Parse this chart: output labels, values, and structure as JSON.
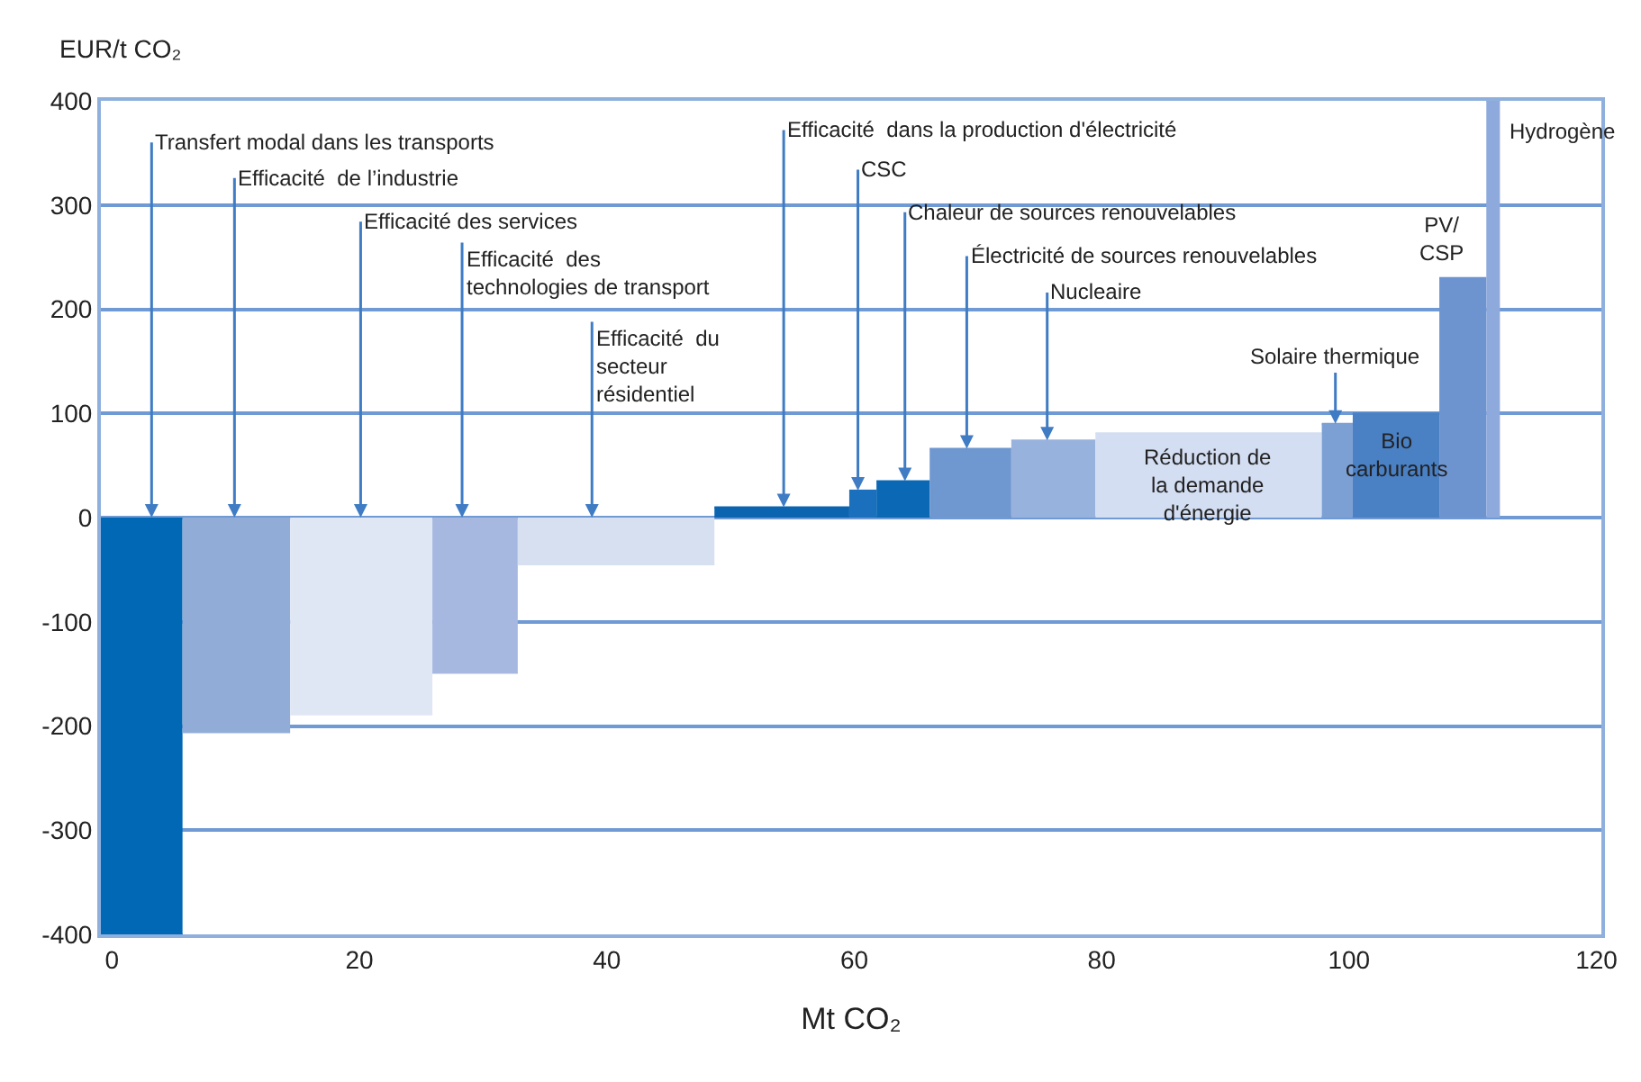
{
  "chart_data": {
    "type": "area",
    "xlabel": "Mt CO₂",
    "ylabel": "EUR/t CO₂",
    "xlim": [
      -0.9,
      120.4
    ],
    "xticks": [
      0,
      20,
      40,
      60,
      80,
      100,
      120
    ],
    "ylim": [
      -400,
      400
    ],
    "yticks": [
      -400,
      -300,
      -200,
      -100,
      0,
      100,
      200,
      300,
      400
    ],
    "grid": "y",
    "series": [
      {
        "color": "#0068b4",
        "x": [
          -0.9,
          5.7
        ],
        "values": [
          -400,
          -400
        ]
      },
      {
        "color": "#92acd8",
        "x": [
          5.7,
          14.4
        ],
        "values": [
          -206,
          -206
        ]
      },
      {
        "color": "#e0e7f4",
        "x": [
          14.4,
          25.9
        ],
        "values": [
          -189,
          -189
        ]
      },
      {
        "color": "#a6b8e0",
        "x": [
          25.9,
          32.8
        ],
        "values": [
          -149,
          -149
        ]
      },
      {
        "color": "#d6e0f1",
        "x": [
          32.8,
          48.7
        ],
        "values": [
          -45,
          -45
        ]
      },
      {
        "color": "#0a64b0",
        "x": [
          48.7,
          59.6
        ],
        "values": [
          10,
          10
        ]
      },
      {
        "color": "#1a70bc",
        "x": [
          59.6,
          61.8
        ],
        "values": [
          26,
          26
        ]
      },
      {
        "color": "#0a68b4",
        "x": [
          61.8,
          66.1
        ],
        "values": [
          35,
          35
        ]
      },
      {
        "color": "#6f97d0",
        "x": [
          66.1,
          72.7
        ],
        "values": [
          66,
          66
        ]
      },
      {
        "color": "#98b2de",
        "x": [
          72.7,
          79.5
        ],
        "values": [
          74,
          74
        ]
      },
      {
        "color": "#d4def2",
        "x": [
          79.5,
          97.8
        ],
        "values": [
          81,
          81
        ]
      },
      {
        "color": "#7c9fd4",
        "x": [
          97.8,
          100.3
        ],
        "values": [
          90,
          90
        ]
      },
      {
        "color": "#4a80c4",
        "x": [
          100.3,
          107.3
        ],
        "values": [
          100,
          100
        ]
      },
      {
        "color": "#6e94d0",
        "x": [
          107.3,
          111.1
        ],
        "values": [
          230,
          230
        ]
      },
      {
        "color": "#8eaadc",
        "x": [
          111.1,
          112.2
        ],
        "values": [
          400,
          400
        ]
      }
    ],
    "annotations": [
      {
        "text": "Transfert modal dans les transports",
        "x": 3.2,
        "y": 0
      },
      {
        "text": "Efficacité  de l’industrie",
        "x": 9.9,
        "y": 0
      },
      {
        "text": "Efficacité des services",
        "x": 20.1,
        "y": 0
      },
      {
        "text": "Efficacité  des\ntechnologies de transport",
        "x": 28.3,
        "y": 0
      },
      {
        "text": "Efficacité  du\nsecteur\nrésidentiel",
        "x": 38.8,
        "y": 0
      },
      {
        "text": "Efficacité  dans la production d'électricité",
        "x": 54.3,
        "y": 10
      },
      {
        "text": "CSC",
        "x": 60.3,
        "y": 26
      },
      {
        "text": "Chaleur de sources renouvelables",
        "x": 64.1,
        "y": 35
      },
      {
        "text": "Électricité de sources renouvelables",
        "x": 69.1,
        "y": 66
      },
      {
        "text": "Nucleaire",
        "x": 75.6,
        "y": 74
      },
      {
        "text": "Réduction de\nla demande\nd'énergie",
        "x": 88.6,
        "y": 81
      },
      {
        "text": "Solaire thermique",
        "x": 98.9,
        "y": 90
      },
      {
        "text": "Bio\ncarburants",
        "x": 103.8,
        "y": 100
      },
      {
        "text": "PV/\nCSP",
        "x": 109.2,
        "y": 230
      },
      {
        "text": "Hydrogène",
        "x": 112.2,
        "y": 400
      }
    ]
  }
}
